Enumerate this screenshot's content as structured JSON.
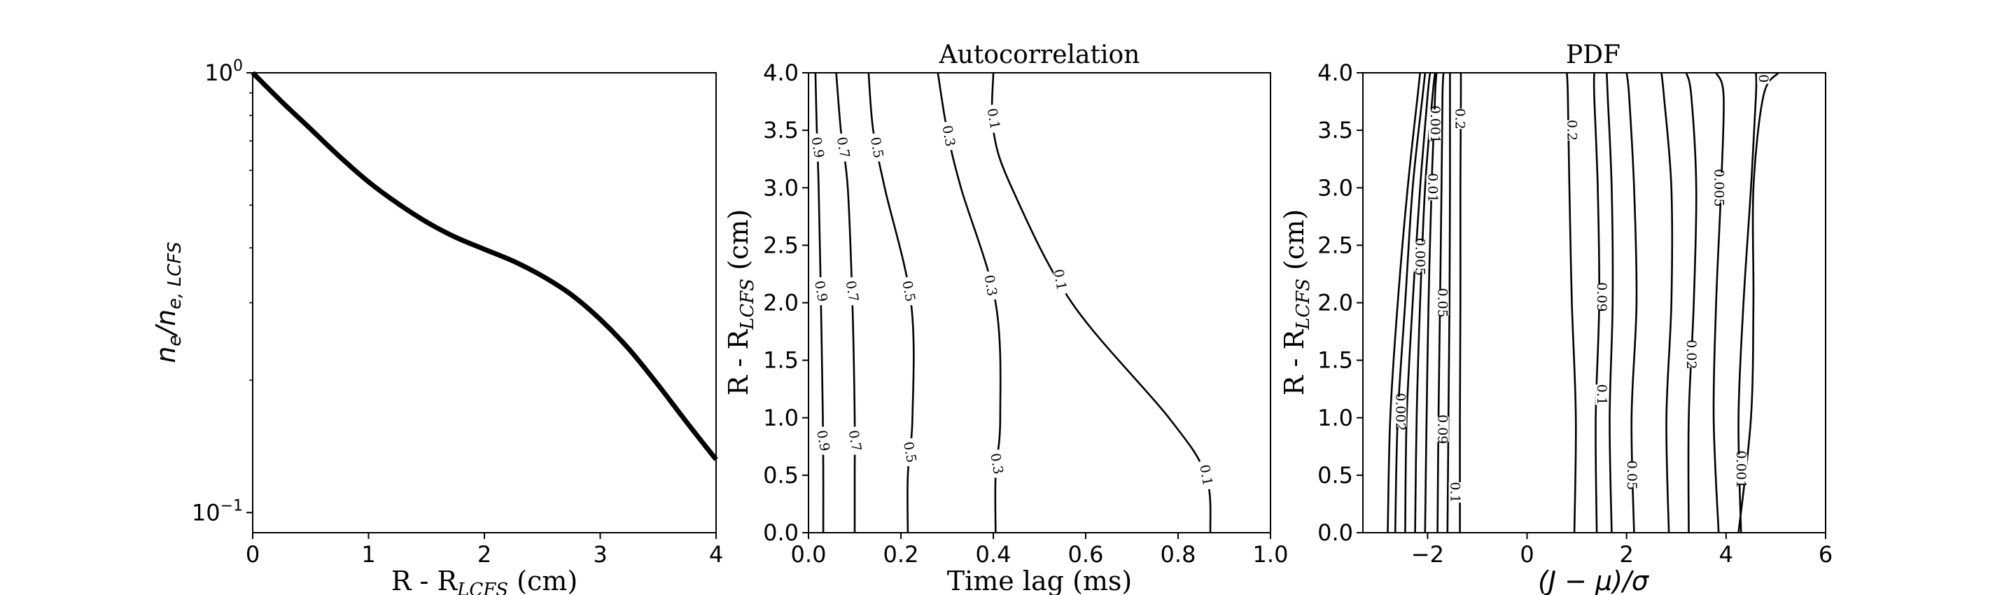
{
  "chart_data": [
    {
      "type": "line",
      "title": "",
      "xlabel": "R - R",
      "xlabel_sub": "LCFS",
      "xlabel_unit": " (cm)",
      "ylabel": "n",
      "ylabel_sub1": "e",
      "ylabel_mid": "/n",
      "ylabel_sub2": "e, LCFS",
      "xlim": [
        0,
        4
      ],
      "ylim": [
        0.09,
        1.0
      ],
      "yscale": "log",
      "xticks": [
        "0",
        "1",
        "2",
        "3",
        "4"
      ],
      "yticks": [
        {
          "base": "10",
          "exp": "0"
        },
        {
          "base": "10",
          "exp": "−1"
        }
      ],
      "series": [
        {
          "color": "#000000",
          "x": [
            0,
            0.25,
            0.5,
            0.75,
            1.0,
            1.25,
            1.5,
            1.75,
            2.0,
            2.25,
            2.5,
            2.75,
            3.0,
            3.25,
            3.5,
            3.75,
            4.0
          ],
          "y": [
            1.0,
            0.86,
            0.745,
            0.645,
            0.565,
            0.505,
            0.458,
            0.423,
            0.397,
            0.373,
            0.345,
            0.313,
            0.275,
            0.235,
            0.195,
            0.16,
            0.132
          ]
        }
      ]
    },
    {
      "type": "contour",
      "title": "Autocorrelation",
      "xlabel": "Time lag (ms)",
      "ylabel": "R - R",
      "ylabel_sub": "LCFS",
      "ylabel_unit": " (cm)",
      "xlim": [
        0,
        1.0
      ],
      "ylim": [
        0,
        4.0
      ],
      "xticks": [
        "0.0",
        "0.2",
        "0.4",
        "0.6",
        "0.8",
        "1.0"
      ],
      "yticks": [
        "0.0",
        "0.5",
        "1.0",
        "1.5",
        "2.0",
        "2.5",
        "3.0",
        "3.5",
        "4.0"
      ],
      "contours": [
        {
          "level": "0.9",
          "x": [
            0.032,
            0.032,
            0.031,
            0.027,
            0.022,
            0.018,
            0.015
          ],
          "y": [
            0.0,
            0.5,
            1.0,
            2.0,
            3.0,
            3.5,
            4.0
          ],
          "label_y": [
            0.8,
            2.1,
            3.35
          ]
        },
        {
          "level": "0.7",
          "x": [
            0.1,
            0.1,
            0.1,
            0.095,
            0.085,
            0.07,
            0.06
          ],
          "y": [
            0.0,
            0.5,
            1.0,
            2.0,
            3.0,
            3.5,
            4.0
          ],
          "label_y": [
            0.8,
            2.1,
            3.35
          ]
        },
        {
          "level": "0.5",
          "x": [
            0.215,
            0.215,
            0.225,
            0.222,
            0.165,
            0.14,
            0.13
          ],
          "y": [
            0.0,
            0.5,
            1.0,
            2.0,
            3.0,
            3.5,
            4.0
          ],
          "label_y": [
            0.7,
            2.1,
            3.35
          ]
        },
        {
          "level": "0.3",
          "x": [
            0.405,
            0.405,
            0.415,
            0.405,
            0.33,
            0.3,
            0.28
          ],
          "y": [
            0.0,
            0.5,
            1.0,
            2.0,
            3.0,
            3.5,
            4.0
          ],
          "label_y": [
            0.6,
            2.15,
            3.45
          ]
        },
        {
          "level": "0.1",
          "x": [
            0.87,
            0.86,
            0.78,
            0.57,
            0.44,
            0.4,
            0.4
          ],
          "y": [
            0.0,
            0.5,
            1.0,
            2.0,
            3.0,
            3.5,
            4.0
          ],
          "label_y": [
            0.5,
            2.2,
            3.6
          ]
        }
      ]
    },
    {
      "type": "contour",
      "title": "PDF",
      "xlabel": "(J − μ)/σ",
      "ylabel": "R - R",
      "ylabel_sub": "LCFS",
      "ylabel_unit": " (cm)",
      "xlim": [
        -3.3,
        6
      ],
      "ylim": [
        0,
        4.0
      ],
      "xticks": [
        "−2",
        "0",
        "2",
        "4",
        "6"
      ],
      "yticks": [
        "0.0",
        "0.5",
        "1.0",
        "1.5",
        "2.0",
        "2.5",
        "3.0",
        "3.5",
        "4.0"
      ],
      "contours": [
        {
          "x": [
            -2.8,
            -2.75,
            -2.6,
            -2.4,
            -2.2,
            -2.15
          ],
          "y": [
            0.0,
            1.0,
            2.0,
            3.0,
            3.8,
            4.0
          ]
        },
        {
          "x": [
            -2.65,
            -2.6,
            -2.45,
            -2.3,
            -2.1,
            -2.05
          ],
          "y": [
            0.0,
            1.0,
            2.0,
            3.0,
            3.8,
            4.0
          ]
        },
        {
          "x": [
            -2.45,
            -2.42,
            -2.3,
            -2.15,
            -2.0,
            -1.95
          ],
          "y": [
            0.0,
            1.0,
            2.0,
            3.0,
            3.8,
            4.0
          ]
        },
        {
          "x": [
            -2.25,
            -2.22,
            -2.15,
            -2.05,
            -1.9,
            -1.85
          ],
          "y": [
            0.0,
            1.0,
            2.0,
            3.0,
            3.8,
            4.0
          ]
        },
        {
          "x": [
            -2.05,
            -2.02,
            -1.98,
            -1.92,
            -1.85,
            -1.82
          ],
          "y": [
            0.0,
            1.0,
            2.0,
            3.0,
            3.8,
            4.0
          ]
        },
        {
          "x": [
            -1.8,
            -1.78,
            -1.75,
            -1.72,
            -1.7,
            -1.68
          ],
          "y": [
            0.0,
            1.0,
            2.0,
            3.0,
            3.8,
            4.0
          ]
        },
        {
          "x": [
            -1.6,
            -1.58,
            -1.56,
            -1.55,
            -1.55,
            -1.55
          ],
          "y": [
            0.0,
            1.0,
            2.0,
            3.0,
            3.8,
            4.0
          ]
        },
        {
          "x": [
            -1.35,
            -1.35,
            -1.34,
            -1.34,
            -1.33,
            -1.33
          ],
          "y": [
            0.0,
            1.0,
            2.0,
            3.0,
            3.8,
            4.0
          ]
        },
        {
          "x": [
            0.95,
            0.98,
            0.9,
            0.85,
            0.82,
            0.8
          ],
          "y": [
            0.0,
            1.0,
            2.0,
            3.0,
            3.8,
            4.0
          ]
        },
        {
          "x": [
            1.4,
            1.38,
            1.45,
            1.42,
            1.35,
            1.35
          ],
          "y": [
            0.0,
            1.0,
            2.0,
            3.0,
            3.8,
            4.0
          ]
        },
        {
          "x": [
            1.7,
            1.66,
            1.72,
            1.7,
            1.62,
            1.6
          ],
          "y": [
            0.0,
            1.0,
            2.0,
            3.0,
            3.8,
            4.0
          ]
        },
        {
          "x": [
            2.15,
            2.1,
            2.2,
            2.15,
            2.05,
            2.0
          ],
          "y": [
            0.0,
            1.0,
            2.0,
            3.0,
            3.8,
            4.0
          ]
        },
        {
          "x": [
            2.85,
            2.8,
            2.9,
            2.9,
            2.75,
            2.7
          ],
          "y": [
            0.0,
            1.0,
            2.0,
            3.0,
            3.8,
            4.0
          ]
        },
        {
          "x": [
            3.25,
            3.25,
            3.35,
            3.4,
            3.3,
            3.2
          ],
          "y": [
            0.0,
            1.0,
            2.0,
            3.0,
            3.8,
            4.0
          ]
        },
        {
          "x": [
            3.85,
            3.75,
            3.8,
            3.9,
            3.95,
            3.8
          ],
          "y": [
            0.0,
            1.0,
            2.0,
            3.0,
            3.8,
            4.0
          ]
        },
        {
          "x": [
            4.3,
            4.25,
            4.35,
            4.5,
            4.6,
            4.6
          ],
          "y": [
            0.0,
            1.0,
            2.0,
            3.0,
            3.8,
            4.0
          ]
        },
        {
          "x": [
            4.25,
            4.5,
            4.55,
            4.55,
            4.75,
            5.05
          ],
          "y": [
            0.0,
            1.0,
            2.0,
            3.0,
            3.8,
            4.0
          ]
        }
      ],
      "labels": [
        {
          "text": "0.001",
          "x": -1.85,
          "y": 3.55
        },
        {
          "text": "0.2",
          "x": -1.35,
          "y": 3.6
        },
        {
          "text": "0.01",
          "x": -1.9,
          "y": 3.0
        },
        {
          "text": "0.005",
          "x": -2.15,
          "y": 2.4
        },
        {
          "text": "0.05",
          "x": -1.7,
          "y": 2.0
        },
        {
          "text": "0.002",
          "x": -2.55,
          "y": 1.05
        },
        {
          "text": "0.09",
          "x": -1.7,
          "y": 0.9
        },
        {
          "text": "0.1",
          "x": -1.45,
          "y": 0.35
        },
        {
          "text": "0.2",
          "x": 0.9,
          "y": 3.5
        },
        {
          "text": "0.09",
          "x": 1.5,
          "y": 2.05
        },
        {
          "text": "0.1",
          "x": 1.5,
          "y": 1.2
        },
        {
          "text": "0.05",
          "x": 2.1,
          "y": 0.5
        },
        {
          "text": "0.02",
          "x": 3.3,
          "y": 1.55
        },
        {
          "text": "0.005",
          "x": 3.85,
          "y": 3.0
        },
        {
          "text": "0.001",
          "x": 4.3,
          "y": 0.55
        },
        {
          "text": "0",
          "x": 4.75,
          "y": 3.95
        }
      ]
    }
  ]
}
